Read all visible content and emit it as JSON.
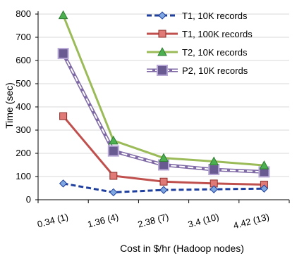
{
  "chart_data": {
    "type": "line",
    "title": "",
    "xlabel": "Cost in $/hr (Hadoop nodes)",
    "ylabel": "Time (sec)",
    "categories": [
      "0.34 (1)",
      "1.36 (4)",
      "2.38 (7)",
      "3.4 (10)",
      "4.42 (13)"
    ],
    "ylim": [
      0,
      800
    ],
    "yticks": [
      0,
      100,
      200,
      300,
      400,
      500,
      600,
      700,
      800
    ],
    "grid": true,
    "legend_position": "top-right",
    "series": [
      {
        "name": "T1, 10K records",
        "values": [
          70,
          32,
          42,
          45,
          48
        ],
        "color": "#1f3f9e",
        "line_style": "dashed",
        "marker": "diamond"
      },
      {
        "name": "T1, 100K records",
        "values": [
          360,
          103,
          78,
          70,
          65
        ],
        "color": "#c0504d",
        "line_style": "solid",
        "marker": "square"
      },
      {
        "name": "T2, 10K records",
        "values": [
          795,
          255,
          180,
          165,
          148
        ],
        "color": "#9bbb59",
        "line_style": "solid",
        "marker": "triangle"
      },
      {
        "name": "P2, 10K records",
        "values": [
          630,
          210,
          150,
          130,
          120
        ],
        "color": "#7f6aa6",
        "line_style": "double",
        "marker": "square"
      }
    ]
  }
}
